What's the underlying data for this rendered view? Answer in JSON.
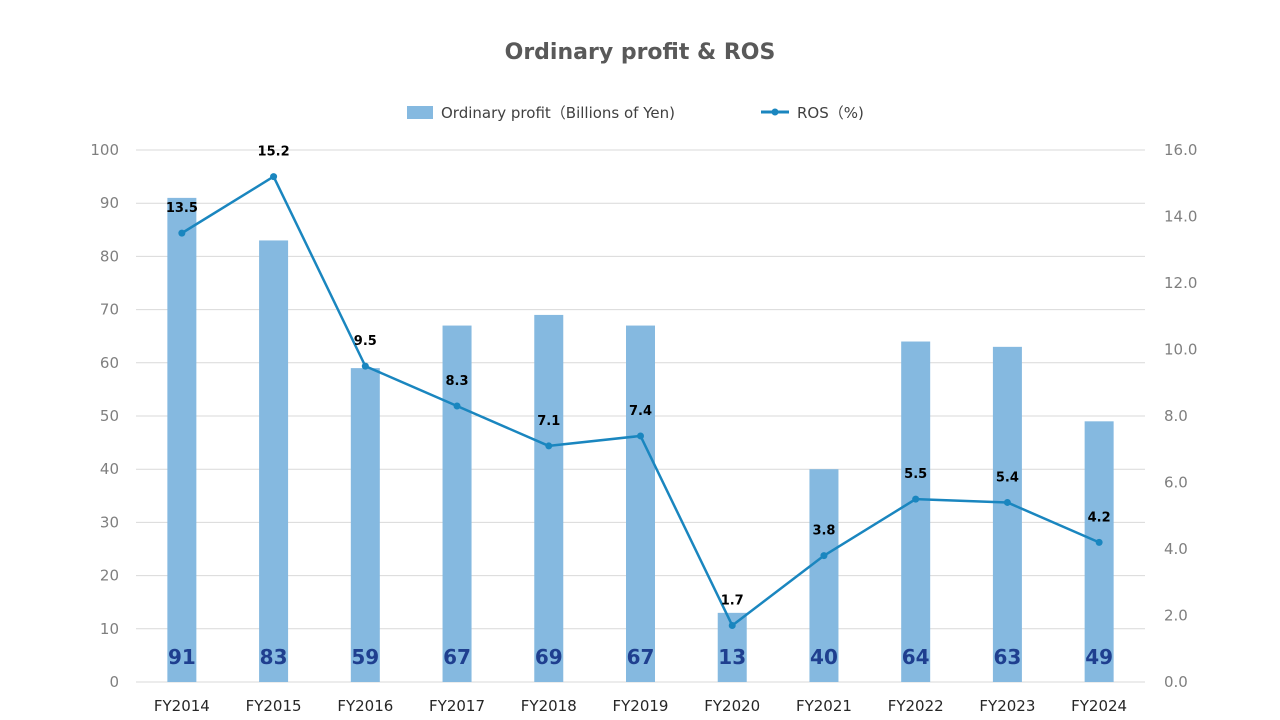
{
  "chart_data": {
    "type": "bar",
    "title": "Ordinary profit & ROS",
    "categories": [
      "FY2014",
      "FY2015",
      "FY2016",
      "FY2017",
      "FY2018",
      "FY2019",
      "FY2020",
      "FY2021",
      "FY2022",
      "FY2023",
      "FY2024"
    ],
    "series": [
      {
        "name": "Ordinary profit（Billions of Yen)",
        "type": "bar",
        "axis": "left",
        "color": "#85b9e0",
        "values": [
          91,
          83,
          59,
          67,
          69,
          67,
          13,
          40,
          64,
          63,
          49
        ]
      },
      {
        "name": "ROS（%)",
        "type": "line",
        "axis": "right",
        "color": "#1a86bf",
        "values": [
          13.5,
          15.2,
          9.5,
          8.3,
          7.1,
          7.4,
          1.7,
          3.8,
          5.5,
          5.4,
          4.2
        ]
      }
    ],
    "left_axis": {
      "min": 0,
      "max": 100,
      "ticks": [
        "0",
        "10",
        "20",
        "30",
        "40",
        "50",
        "60",
        "70",
        "80",
        "90",
        "100"
      ]
    },
    "right_axis": {
      "min": 0,
      "max": 16,
      "ticks": [
        "0.0",
        "2.0",
        "4.0",
        "6.0",
        "8.0",
        "10.0",
        "12.0",
        "14.0",
        "16.0"
      ]
    },
    "legend_position": "top-center",
    "grid": true
  }
}
